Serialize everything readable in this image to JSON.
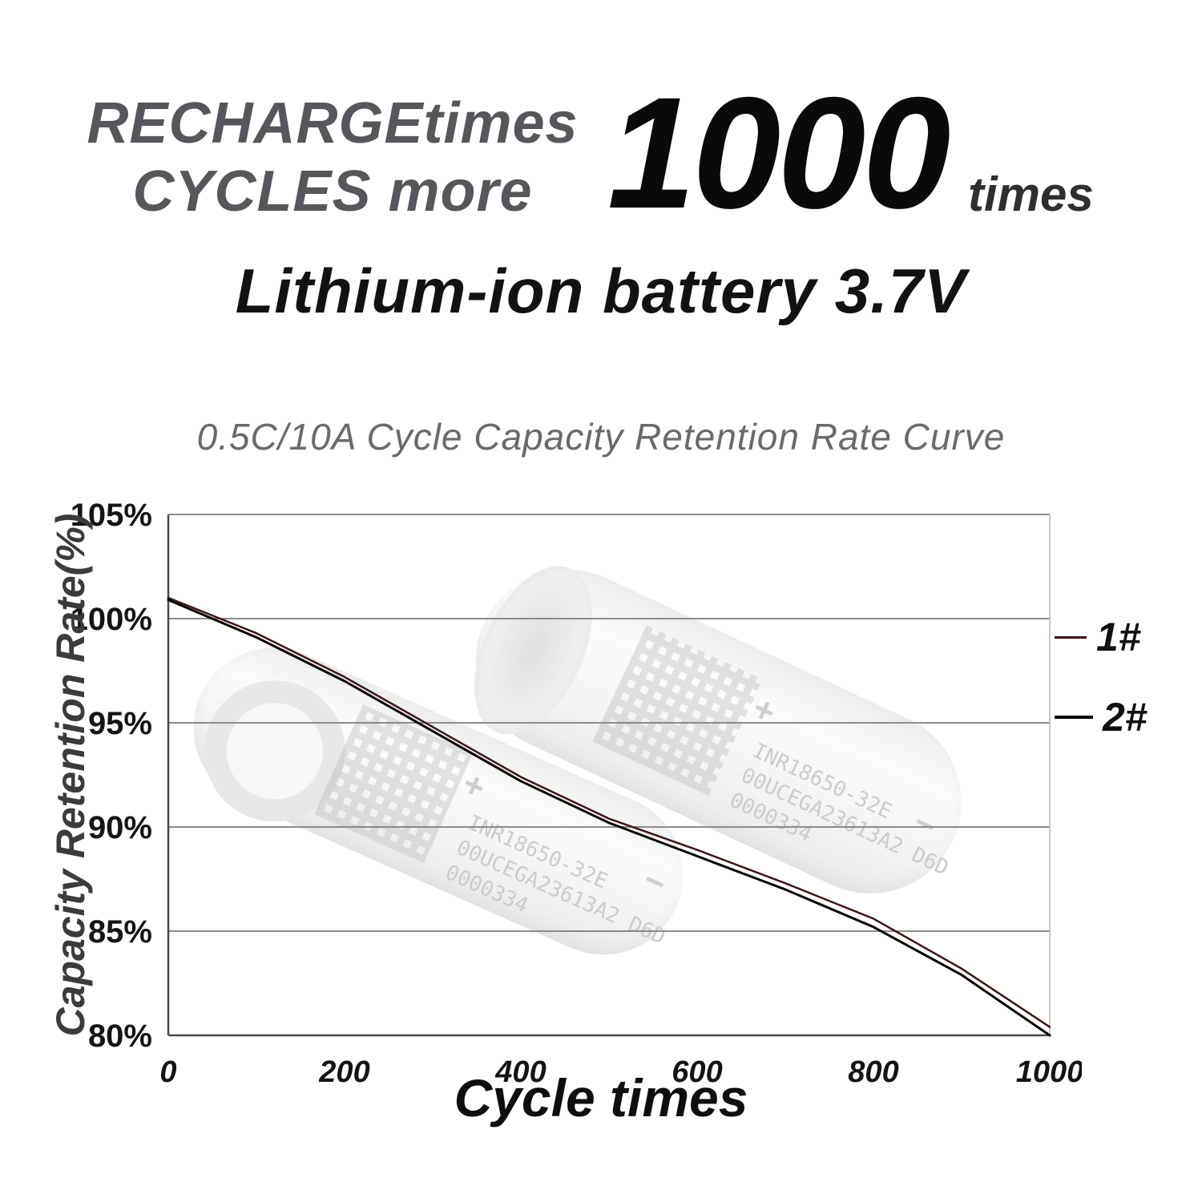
{
  "header": {
    "line1": "RECHARGEtimes",
    "line2": "CYCLES more",
    "big_number": "1000",
    "times_label": "times",
    "product_title": "Lithium-ion battery 3.7V"
  },
  "watermark": {
    "model": "INR18650-32E",
    "code": "00UCEGA23613A2 D6D",
    "serial": "0000334",
    "plus": "+",
    "minus": "−"
  },
  "chart_data": {
    "type": "line",
    "title": "0.5C/10A Cycle Capacity Retention Rate Curve",
    "xlabel": "Cycle times",
    "ylabel": "Capacity Retention Rate(%)",
    "xlim": [
      0,
      1000
    ],
    "ylim": [
      80,
      105
    ],
    "xticks": [
      0,
      200,
      400,
      600,
      800,
      1000
    ],
    "yticks": [
      105,
      100,
      95,
      90,
      85,
      80
    ],
    "ytick_suffix": "%",
    "grid": "horizontal",
    "legend_position": "right",
    "x": [
      0,
      100,
      200,
      300,
      400,
      500,
      600,
      700,
      800,
      900,
      1000
    ],
    "series": [
      {
        "name": "1#",
        "color": "#3d1515",
        "stroke_width": 2.5,
        "values": [
          101.0,
          99.3,
          97.2,
          94.8,
          92.4,
          90.4,
          88.9,
          87.3,
          85.6,
          83.2,
          80.4
        ]
      },
      {
        "name": "2#",
        "color": "#000000",
        "stroke_width": 3,
        "values": [
          100.9,
          99.1,
          97.0,
          94.6,
          92.2,
          90.2,
          88.6,
          87.0,
          85.2,
          82.9,
          80.0
        ]
      }
    ]
  }
}
